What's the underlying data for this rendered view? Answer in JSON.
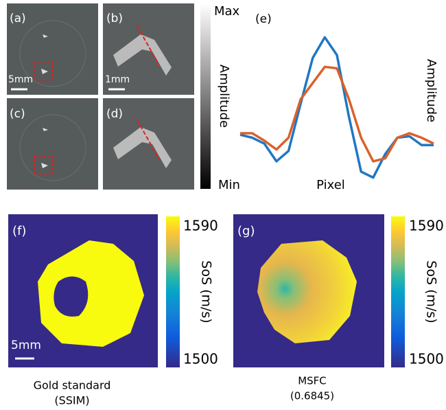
{
  "panels": {
    "a": {
      "label": "(a)",
      "scale": "5mm"
    },
    "b": {
      "label": "(b)",
      "scale": "1mm"
    },
    "c": {
      "label": "(c)"
    },
    "d": {
      "label": "(d)"
    },
    "amplitude_bar": {
      "max": "Max",
      "title": "Amplitude",
      "min": "Min"
    },
    "f": {
      "label": "(f)",
      "scale": "5mm",
      "colorbar": {
        "max": "1590",
        "title": "SoS (m/s)",
        "min": "1500"
      },
      "caption": [
        "Gold standard",
        "(SSIM)"
      ]
    },
    "g": {
      "label": "(g)",
      "colorbar": {
        "max": "1590",
        "title": "SoS (m/s)",
        "min": "1500"
      },
      "caption": [
        "MSFC",
        "(0.6845)"
      ]
    }
  },
  "chart_data": {
    "type": "line",
    "label": "(e)",
    "xlabel": "Pixel",
    "ylabel": "Amplitude",
    "ylim": [
      0,
      1
    ],
    "series": [
      {
        "color": "#1f77c4",
        "values": [
          0.32,
          0.3,
          0.26,
          0.14,
          0.21,
          0.53,
          0.84,
          0.98,
          0.86,
          0.44,
          0.07,
          0.03,
          0.19,
          0.3,
          0.31,
          0.25,
          0.25
        ]
      },
      {
        "color": "#d9622b",
        "values": [
          0.33,
          0.33,
          0.28,
          0.22,
          0.3,
          0.56,
          0.67,
          0.78,
          0.77,
          0.56,
          0.3,
          0.14,
          0.16,
          0.3,
          0.33,
          0.3,
          0.26
        ]
      }
    ]
  }
}
